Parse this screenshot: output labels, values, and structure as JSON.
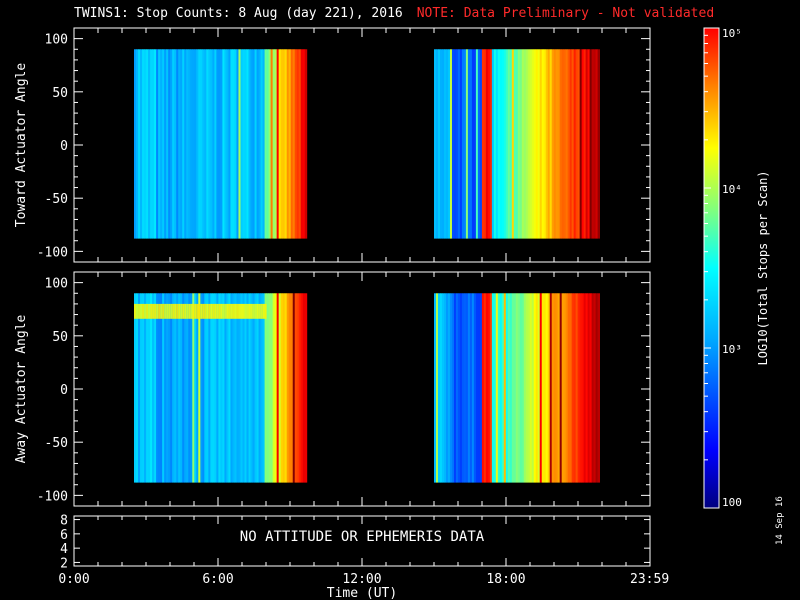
{
  "header": {
    "title": "TWINS1: Stop Counts:  8 Aug (day 221), 2016",
    "note": "NOTE: Data Preliminary - Not validated"
  },
  "stamp": "14 Sep 16",
  "chart_data": [
    {
      "type": "heatmap",
      "panel": "top",
      "ylabel": "Toward Actuator Angle",
      "ylim": [
        -110,
        110
      ],
      "yticks": [
        100,
        50,
        0,
        -50,
        -100
      ],
      "xlim": [
        0,
        24
      ],
      "coverage_hours": [
        [
          2.5,
          9.7
        ],
        [
          15.0,
          21.9
        ]
      ],
      "coverage_angle": [
        -88,
        90
      ]
    },
    {
      "type": "heatmap",
      "panel": "middle",
      "ylabel": "Away Actuator Angle",
      "ylim": [
        -110,
        110
      ],
      "yticks": [
        100,
        50,
        0,
        -50,
        -100
      ],
      "xlim": [
        0,
        24
      ],
      "coverage_hours": [
        [
          2.5,
          9.7
        ],
        [
          15.0,
          21.9
        ]
      ],
      "coverage_angle": [
        -88,
        90
      ]
    },
    {
      "type": "line",
      "panel": "bottom",
      "ylim": [
        1.5,
        8.5
      ],
      "yticks": [
        8,
        6,
        4,
        2
      ],
      "message": "NO ATTITUDE OR EPHEMERIS DATA"
    }
  ],
  "xaxis": {
    "label": "Time (UT)",
    "ticks": [
      {
        "hour": 0,
        "label": "0:00"
      },
      {
        "hour": 6,
        "label": "6:00"
      },
      {
        "hour": 12,
        "label": "12:00"
      },
      {
        "hour": 18,
        "label": "18:00"
      },
      {
        "hour": 23.983,
        "label": "23:59"
      }
    ]
  },
  "colorbar": {
    "label": "LOG10(Total Stops per Scan)",
    "scale": "log",
    "range": [
      100,
      100000
    ],
    "ticks": [
      {
        "value": 100000,
        "label": "10⁵"
      },
      {
        "value": 10000,
        "label": "10⁴"
      },
      {
        "value": 1000,
        "label": "10³"
      },
      {
        "value": 100,
        "label": "100"
      }
    ]
  }
}
